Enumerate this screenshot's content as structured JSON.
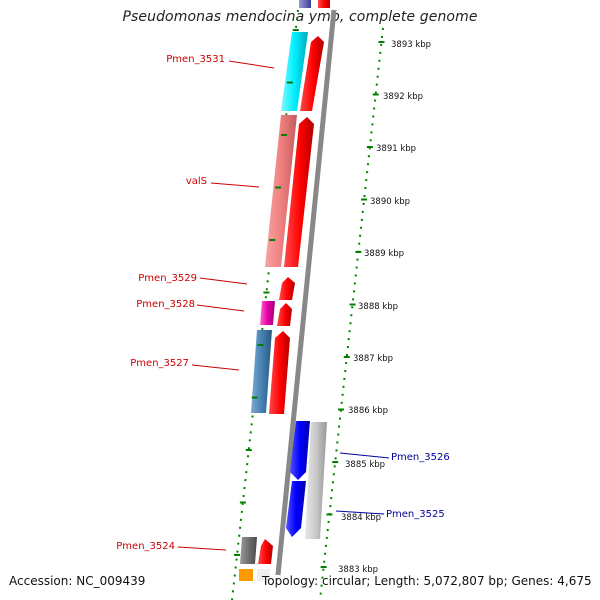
{
  "title": "Pseudomonas mendocina ymp, complete genome",
  "footer": {
    "accession": "Accession: NC_009439",
    "topology": "Topology: circular; Length: 5,072,807 bp; Genes: 4,675"
  },
  "colors": {
    "forward_label": "#cc0000",
    "reverse_label": "#000099",
    "backbone": "#888888",
    "tick": "#008000"
  },
  "kbp_ticks": [
    "3893 kbp",
    "3892 kbp",
    "3891 kbp",
    "3890 kbp",
    "3889 kbp",
    "3888 kbp",
    "3887 kbp",
    "3886 kbp",
    "3885 kbp",
    "3884 kbp",
    "3883 kbp"
  ],
  "gene_labels": {
    "pmen_3531": "Pmen_3531",
    "vals": "valS",
    "pmen_3529": "Pmen_3529",
    "pmen_3528": "Pmen_3528",
    "pmen_3527": "Pmen_3527",
    "pmen_3524": "Pmen_3524",
    "pmen_3526": "Pmen_3526",
    "pmen_3525": "Pmen_3525"
  }
}
